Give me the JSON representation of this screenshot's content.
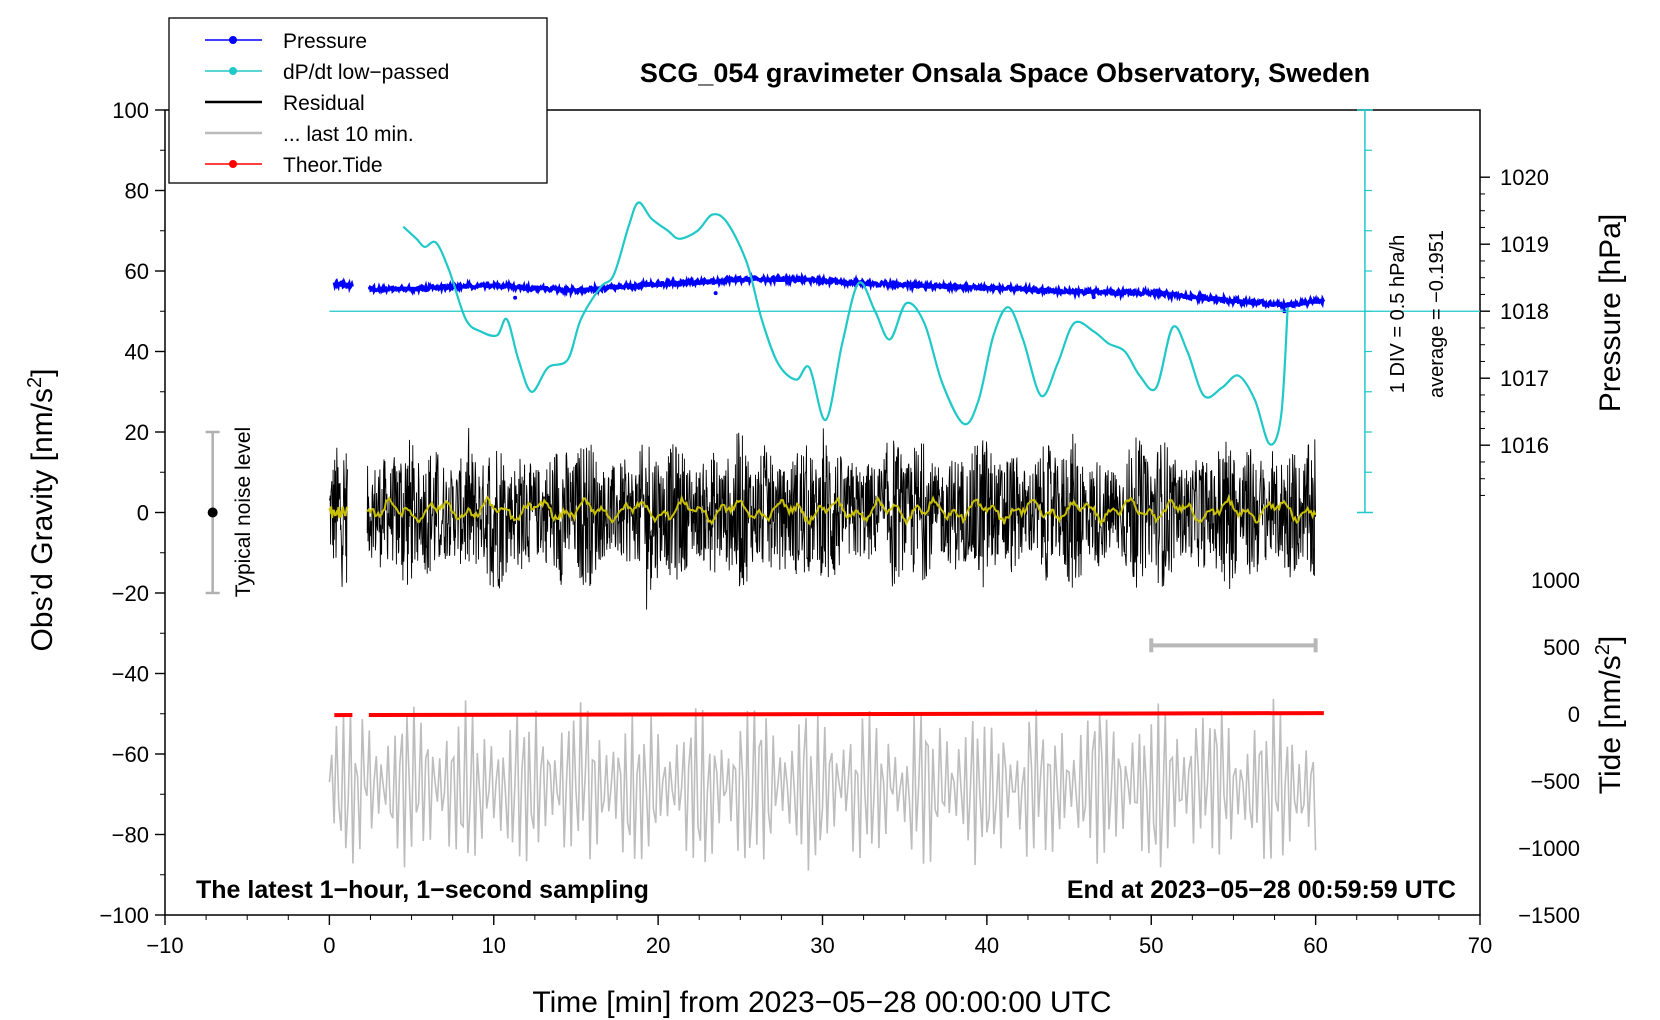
{
  "chart_data": {
    "type": "line",
    "title": "SCG_054 gravimeter Onsala Space Observatory, Sweden",
    "xlabel": "Time [min] from 2023−05−28 00:00:00 UTC",
    "ylabel": "Obs’d Gravity [nm/s",
    "ylabel_sup": "2",
    "ylabel_end": "]",
    "y2label": "Pressure [hPa]",
    "y3label": "Tide [nm/s",
    "y3label_sup": "2",
    "y3label_end": "]",
    "xlim": [
      -10,
      70
    ],
    "ylim": [
      -100,
      100
    ],
    "x_ticks": [
      "−10",
      "0",
      "10",
      "20",
      "30",
      "40",
      "50",
      "60",
      "70"
    ],
    "y_ticks": [
      "100",
      "80",
      "60",
      "40",
      "20",
      "0",
      "−20",
      "−40",
      "−60",
      "−80",
      "−100"
    ],
    "pressure_ticks": [
      "1020",
      "1019",
      "1018",
      "1017",
      "1016"
    ],
    "tide_ticks": [
      "1000",
      "500",
      "0",
      "−500",
      "−1000",
      "−1500"
    ],
    "bottom_left_note": "The latest 1−hour, 1−second sampling",
    "bottom_right_note": "End at 2023−05−28 00:59:59 UTC",
    "noise_label": "Typical noise level",
    "noise_range": [
      -20,
      20
    ],
    "dpdt_scale_label": "1 DIV = 0.5 hPa/h",
    "dpdt_average_label": "average = −0.1951",
    "last10_range_min": [
      50,
      60
    ],
    "legend": [
      {
        "label": "Pressure",
        "color": "#0000ff",
        "marker": true
      },
      {
        "label": "dP/dt low−passed",
        "color": "#20c8c8",
        "marker": true
      },
      {
        "label": "Residual",
        "color": "#000000",
        "marker": false
      },
      {
        "label": "... last 10 min.",
        "color": "#bbbbbb",
        "marker": false
      },
      {
        "label": "Theor.Tide",
        "color": "#ff0000",
        "marker": true
      }
    ],
    "series": [
      {
        "name": "Pressure",
        "axis": "pressure_hPa",
        "x": [
          0,
          1.4,
          2.4,
          5,
          10,
          15,
          20,
          26,
          29,
          35,
          40,
          45,
          50,
          55,
          58,
          60.5
        ],
        "y": [
          1018.42,
          1018.38,
          1018.34,
          1018.33,
          1018.39,
          1018.31,
          1018.41,
          1018.48,
          1018.47,
          1018.39,
          1018.35,
          1018.29,
          1018.27,
          1018.16,
          1018.09,
          1018.15
        ]
      },
      {
        "name": "dP/dt low-passed",
        "axis": "gravity_scaled",
        "x": [
          4.5,
          5.3,
          5.8,
          6.5,
          7.3,
          8.3,
          9.2,
          10.2,
          10.8,
          11.5,
          12.3,
          13.3,
          14.5,
          15.3,
          16.5,
          17.3,
          18.2,
          18.8,
          19.6,
          20.6,
          21.3,
          22.4,
          23.3,
          24.2,
          25.4,
          26.3,
          27.3,
          28.4,
          29.2,
          30.2,
          31.2,
          32.2,
          33.2,
          34.1,
          35.1,
          36.2,
          37.3,
          38.6,
          39.5,
          40.4,
          41.3,
          42.2,
          43.3,
          44.3,
          45.3,
          46.5,
          47.4,
          48.4,
          49.3,
          50.3,
          51.3,
          52.2,
          53.2,
          54.3,
          55.3,
          56.3,
          57.2,
          57.9,
          58.3
        ],
        "y": [
          71,
          68,
          66,
          67,
          60,
          48,
          45,
          44,
          48,
          38,
          30,
          36,
          38,
          48,
          56,
          59,
          71,
          77,
          73,
          70,
          68,
          70,
          74,
          72,
          62,
          48,
          37,
          33,
          36,
          23,
          42,
          57,
          50,
          43,
          52,
          47,
          32,
          22,
          28,
          44,
          51,
          43,
          29,
          37,
          47,
          45,
          42,
          40,
          34,
          31,
          46,
          40,
          29,
          31,
          34,
          28,
          17,
          24,
          51
        ]
      },
      {
        "name": "Residual",
        "axis": "gravity",
        "description": "dense 1-second noise, roughly ±20 nm/s² around 0",
        "x_range": [
          0,
          60
        ],
        "amplitude": 20
      },
      {
        "name": "Residual smoothed",
        "axis": "gravity",
        "x_range": [
          2.3,
          60
        ],
        "mean": 0.5,
        "amplitude": 2
      },
      {
        "name": "... last 10 min.",
        "axis": "gravity",
        "description": "grey oscillating trace, about −70 ± 10 nm/s²",
        "x_range": [
          0,
          60
        ],
        "center": -70
      },
      {
        "name": "Theor.Tide",
        "axis": "tide_nms2",
        "x": [
          0.3,
          60.5
        ],
        "y": [
          -10,
          5
        ]
      }
    ]
  }
}
